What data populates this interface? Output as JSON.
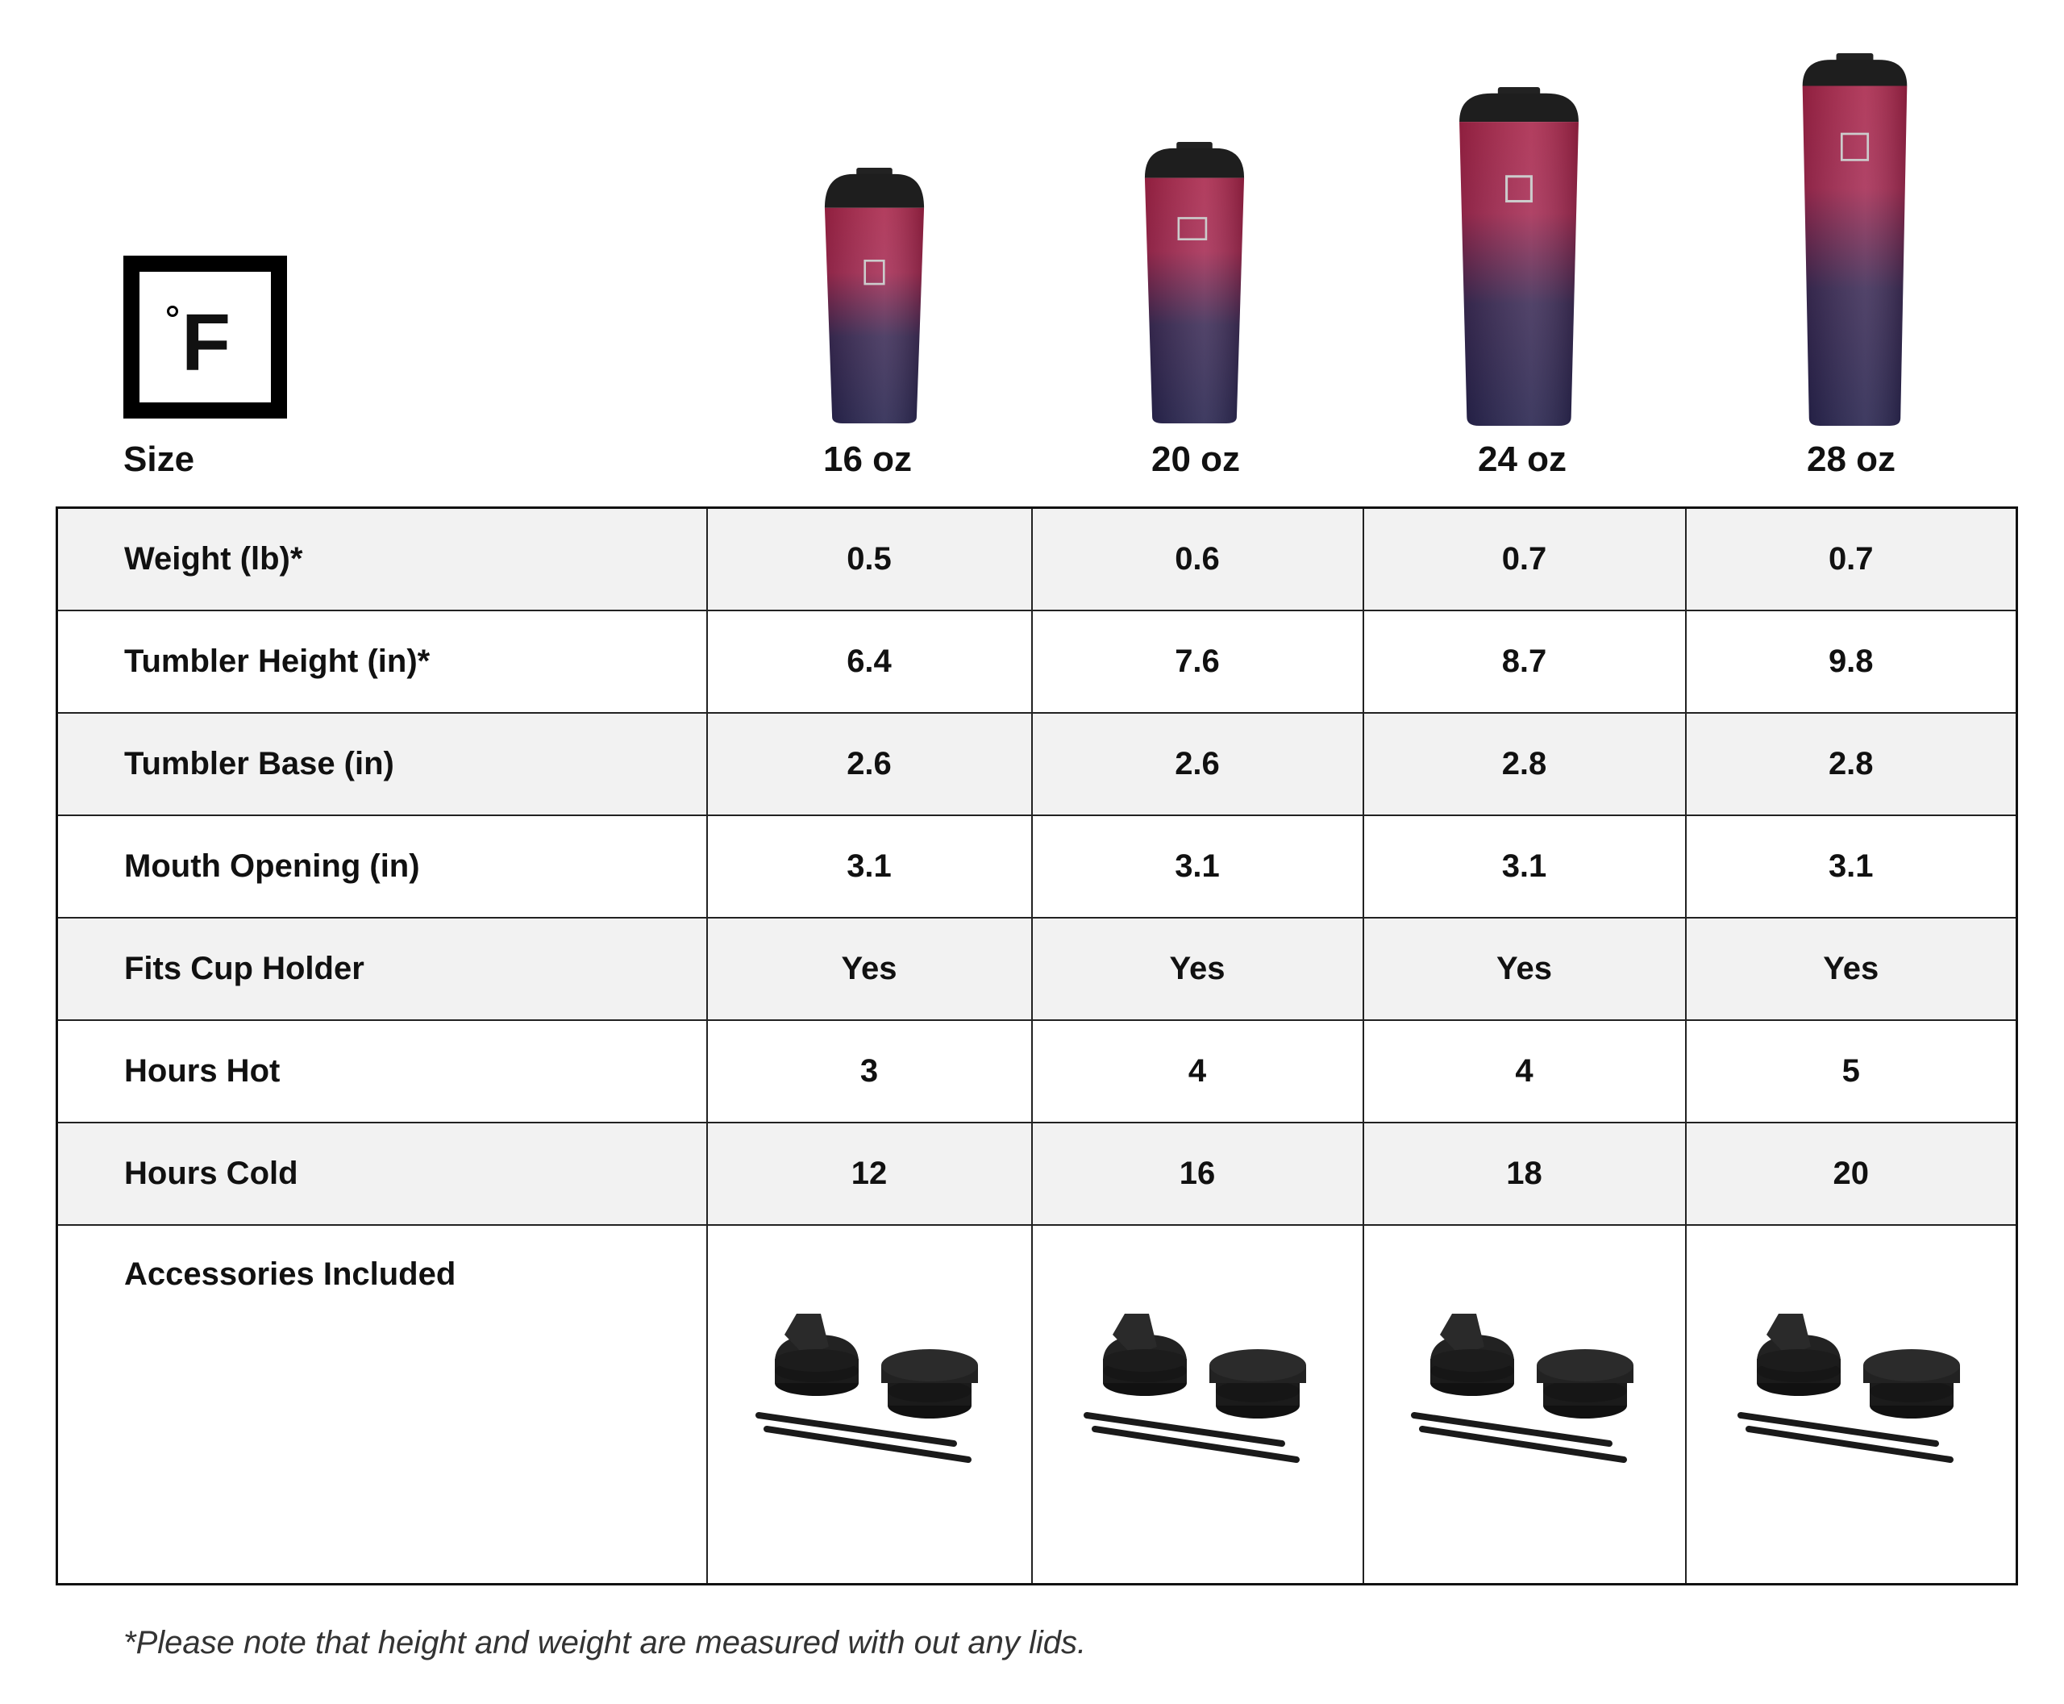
{
  "brand": {
    "logo_text": "°F"
  },
  "header": {
    "size_label": "Size",
    "sizes": [
      "16 oz",
      "20 oz",
      "24 oz",
      "28 oz"
    ]
  },
  "colors": {
    "tumbler_top": "#b0284f",
    "tumbler_bottom": "#2a2450",
    "lid": "#1e1e1e",
    "stripe": "#f2f2f2"
  },
  "table": {
    "rows": [
      {
        "label": "Weight (lb)*",
        "values": [
          "0.5",
          "0.6",
          "0.7",
          "0.7"
        ]
      },
      {
        "label": "Tumbler Height (in)*",
        "values": [
          "6.4",
          "7.6",
          "8.7",
          "9.8"
        ]
      },
      {
        "label": "Tumbler Base (in)",
        "values": [
          "2.6",
          "2.6",
          "2.8",
          "2.8"
        ]
      },
      {
        "label": "Mouth Opening (in)",
        "values": [
          "3.1",
          "3.1",
          "3.1",
          "3.1"
        ]
      },
      {
        "label": "Fits Cup Holder",
        "values": [
          "Yes",
          "Yes",
          "Yes",
          "Yes"
        ]
      },
      {
        "label": "Hours Hot",
        "values": [
          "3",
          "4",
          "4",
          "5"
        ]
      },
      {
        "label": "Hours Cold",
        "values": [
          "12",
          "16",
          "18",
          "20"
        ]
      }
    ],
    "accessories_label": "Accessories Included",
    "accessories_icons": [
      "flip-lid-icon",
      "screw-lid-icon",
      "straw-icon"
    ]
  },
  "footnote": "*Please note that height and weight are measured with out any lids."
}
